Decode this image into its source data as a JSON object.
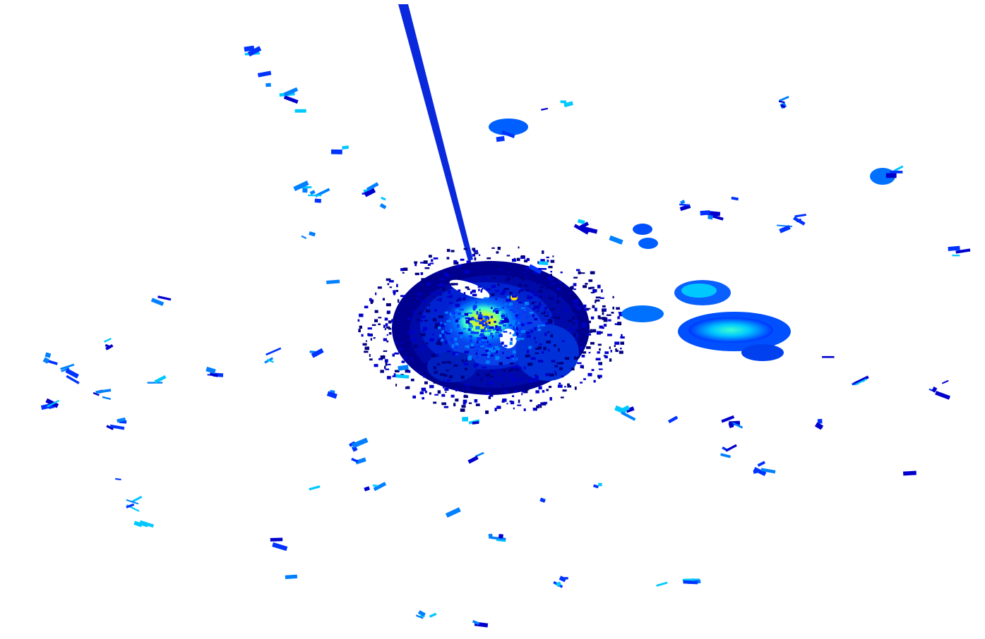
{
  "image": {
    "kind": "radar-reflectivity-scan",
    "background_color": "#ffffff",
    "colormap": [
      "#000080",
      "#0000cd",
      "#0033ff",
      "#0080ff",
      "#00c8ff",
      "#40ffd0",
      "#b0ff50",
      "#ffe000",
      "#ff8000",
      "#ff0000"
    ]
  }
}
